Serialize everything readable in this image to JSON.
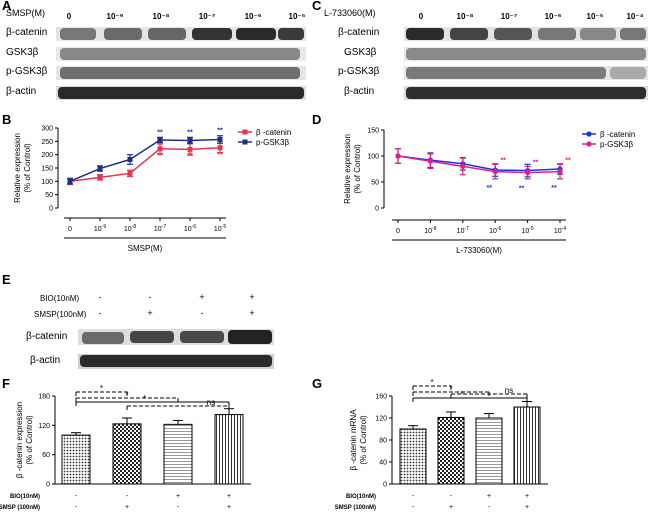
{
  "panels": {
    "A": {
      "label": "A",
      "header": "SMSP(M)",
      "concs": [
        "0",
        "10⁻⁹",
        "10⁻⁸",
        "10⁻⁷",
        "10⁻⁶",
        "10⁻⁵"
      ],
      "rows": [
        "β-catenin",
        "GSK3β",
        "p-GSK3β",
        "β-actin"
      ]
    },
    "C": {
      "label": "C",
      "header": "L-733060(M)",
      "concs": [
        "0",
        "10⁻⁸",
        "10⁻⁷",
        "10⁻⁶",
        "10⁻⁵",
        "10⁻⁴"
      ],
      "rows": [
        "β-catenin",
        "GSK3β",
        "p-GSK3β",
        "β-actin"
      ]
    },
    "E": {
      "label": "E",
      "rows": [
        "β-catenin",
        "β-actin"
      ],
      "treatments": [
        {
          "name": "BIO(10nM)",
          "signs": [
            "-",
            "-",
            "+",
            "+"
          ]
        },
        {
          "name": "SMSP(100nM)",
          "signs": [
            "-",
            "+",
            "-",
            "+"
          ]
        }
      ]
    }
  },
  "chart_data": [
    {
      "id": "B",
      "type": "line",
      "ylabel": "Relative expression\n(% of Control)",
      "xlabel": "SMSP(M)",
      "categories": [
        "0",
        "10-9",
        "10-8",
        "10-7",
        "10-6",
        "10-5"
      ],
      "ylim": [
        0,
        300
      ],
      "yticks": [
        0,
        50,
        100,
        150,
        200,
        250,
        300
      ],
      "series": [
        {
          "name": "β -catenin",
          "color": "#e6344f",
          "values": [
            100,
            115,
            130,
            222,
            220,
            226
          ],
          "errors": [
            12,
            10,
            12,
            18,
            22,
            18
          ],
          "sig": [
            "",
            "",
            "",
            "**",
            "**",
            "**"
          ]
        },
        {
          "name": "p-GSK3β",
          "color": "#1f2d8a",
          "values": [
            100,
            148,
            182,
            255,
            253,
            257
          ],
          "errors": [
            10,
            10,
            18,
            10,
            12,
            14
          ],
          "sig": [
            "",
            "",
            "",
            "**",
            "**",
            "**"
          ]
        }
      ]
    },
    {
      "id": "D",
      "type": "line",
      "ylabel": "Relative expression\n(% of Control)",
      "xlabel": "L-733060(M)",
      "categories": [
        "0",
        "10-8",
        "10-7",
        "10-6",
        "10-5",
        "10-4"
      ],
      "ylim": [
        0,
        150
      ],
      "yticks": [
        0,
        50,
        100,
        150
      ],
      "series": [
        {
          "name": "β -catenin",
          "color": "#2233dd",
          "values": [
            100,
            92,
            85,
            73,
            72,
            75
          ],
          "errors": [
            14,
            14,
            12,
            12,
            12,
            10
          ],
          "sig": [
            "",
            "",
            "",
            "**",
            "**",
            "**"
          ]
        },
        {
          "name": "p-GSK3β",
          "color": "#e0208a",
          "values": [
            100,
            90,
            80,
            70,
            68,
            70
          ],
          "errors": [
            14,
            14,
            16,
            14,
            12,
            14
          ],
          "sig": [
            "",
            "",
            "",
            "**",
            "**",
            "**"
          ]
        }
      ]
    },
    {
      "id": "F",
      "type": "bar",
      "ylabel": "β -catenin expression\n(% of Control)",
      "ylim": [
        0,
        180
      ],
      "yticks": [
        0,
        60,
        120,
        180
      ],
      "values": [
        100,
        123,
        122,
        142
      ],
      "errors": [
        5,
        12,
        8,
        12
      ],
      "treatments": [
        {
          "name": "BIO(10nM)",
          "signs": [
            "-",
            "-",
            "+",
            "+"
          ]
        },
        {
          "name": "SMSP (100nM)",
          "signs": [
            "-",
            "+",
            "-",
            "+"
          ]
        }
      ],
      "brackets": [
        "*",
        "*",
        "*",
        "ns"
      ]
    },
    {
      "id": "G",
      "type": "bar",
      "ylabel": "β -catenin mRNA\n(% of Control)",
      "ylim": [
        0,
        160
      ],
      "yticks": [
        0,
        40,
        80,
        120,
        160
      ],
      "values": [
        100,
        121,
        120,
        140
      ],
      "errors": [
        6,
        10,
        8,
        10
      ],
      "treatments": [
        {
          "name": "BIO(10nM)",
          "signs": [
            "-",
            "-",
            "+",
            "+"
          ]
        },
        {
          "name": "SMSP (100nM)",
          "signs": [
            "-",
            "+",
            "-",
            "+"
          ]
        }
      ],
      "brackets": [
        "*",
        "*",
        "*",
        "ns"
      ]
    }
  ]
}
